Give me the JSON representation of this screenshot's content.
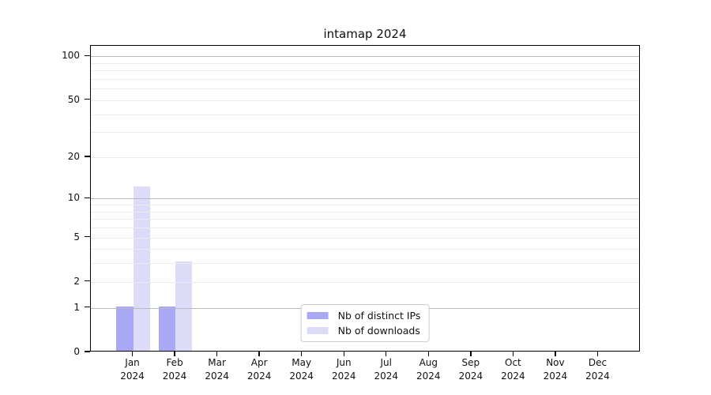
{
  "chart_data": {
    "type": "bar",
    "title": "intamap 2024",
    "categories": [
      "Jan",
      "Feb",
      "Mar",
      "Apr",
      "May",
      "Jun",
      "Jul",
      "Aug",
      "Sep",
      "Oct",
      "Nov",
      "Dec"
    ],
    "category_year": "2024",
    "series": [
      {
        "name": "Nb of distinct IPs",
        "color": "#a8a8f4",
        "values": [
          1,
          1,
          0,
          0,
          0,
          0,
          0,
          0,
          0,
          0,
          0,
          0
        ]
      },
      {
        "name": "Nb of downloads",
        "color": "#dcdcf8",
        "values": [
          12,
          3,
          0,
          0,
          0,
          0,
          0,
          0,
          0,
          0,
          0,
          0
        ]
      }
    ],
    "yscale": "log1p",
    "ylim": [
      0,
      118
    ],
    "yticks": [
      0,
      1,
      2,
      5,
      10,
      20,
      50,
      100
    ],
    "major_gridlines": [
      1,
      10,
      100
    ],
    "minor_gridlines": [
      2,
      3,
      4,
      5,
      6,
      7,
      8,
      9,
      20,
      30,
      40,
      50,
      60,
      70,
      80,
      90
    ],
    "grid": "horizontal",
    "legend_position": "lower center",
    "colors": {
      "major_grid": "#b9b9bd",
      "minor_grid": "#ececec",
      "axis": "#000000",
      "background": "#ffffff"
    }
  }
}
